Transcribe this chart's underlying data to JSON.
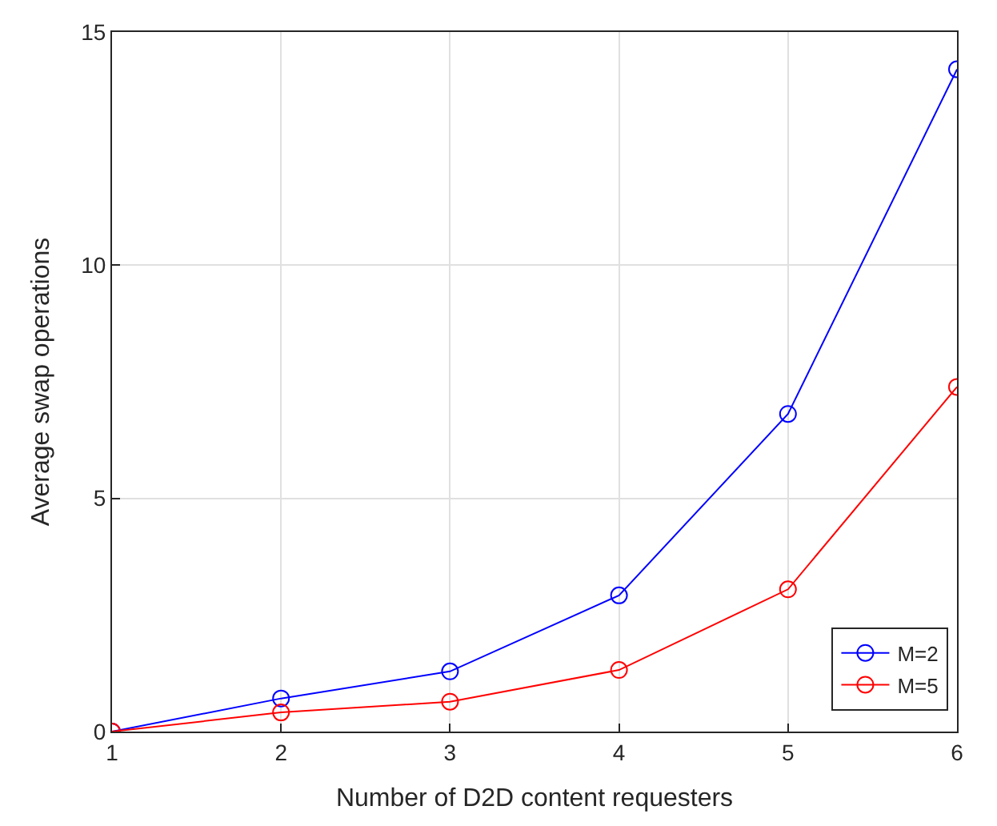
{
  "chart_data": {
    "type": "line",
    "xlabel": "Number of D2D content requesters",
    "ylabel": "Average swap operations",
    "x": [
      1,
      2,
      3,
      4,
      5,
      6
    ],
    "series": [
      {
        "name": "M=2",
        "color": "#0000ff",
        "values": [
          0,
          0.71,
          1.29,
          2.92,
          6.81,
          14.2
        ]
      },
      {
        "name": "M=5",
        "color": "#ff0000",
        "values": [
          0,
          0.41,
          0.64,
          1.32,
          3.05,
          7.39
        ]
      }
    ],
    "xlim": [
      1,
      6
    ],
    "xticks": [
      1,
      2,
      3,
      4,
      5,
      6
    ],
    "ylim": [
      0,
      15
    ],
    "yticks": [
      0,
      5,
      10,
      15
    ],
    "grid": true,
    "legend": "bottom right",
    "marker": "circle",
    "line_style": "solid"
  }
}
